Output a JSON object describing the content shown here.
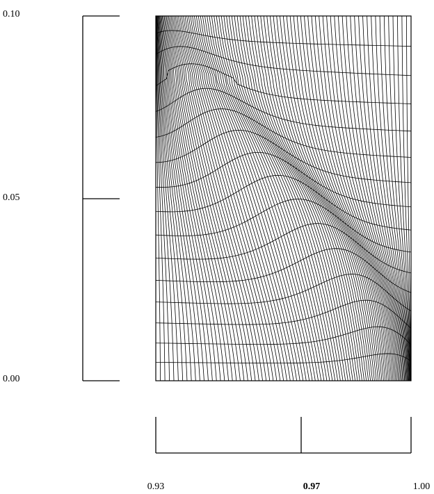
{
  "chart_data": {
    "type": "mesh",
    "title": "",
    "xlabel": "",
    "ylabel": "",
    "xlim": [
      0.93,
      1.0
    ],
    "ylim": [
      0.0,
      0.1
    ],
    "y_ticks": [
      "0.00",
      "0.05",
      "0.10"
    ],
    "x_ticks": [
      "0.93",
      "0.97",
      "1.00"
    ],
    "x_tick_emphasis": [
      false,
      true,
      false
    ],
    "mesh": {
      "vertical_lines": 100,
      "horizontal_lines": 16,
      "corner_clustering": [
        "top-left",
        "bottom-right"
      ]
    },
    "grid": false,
    "legend": "none",
    "colors": {
      "lines": "#000000",
      "background": "#ffffff"
    }
  }
}
